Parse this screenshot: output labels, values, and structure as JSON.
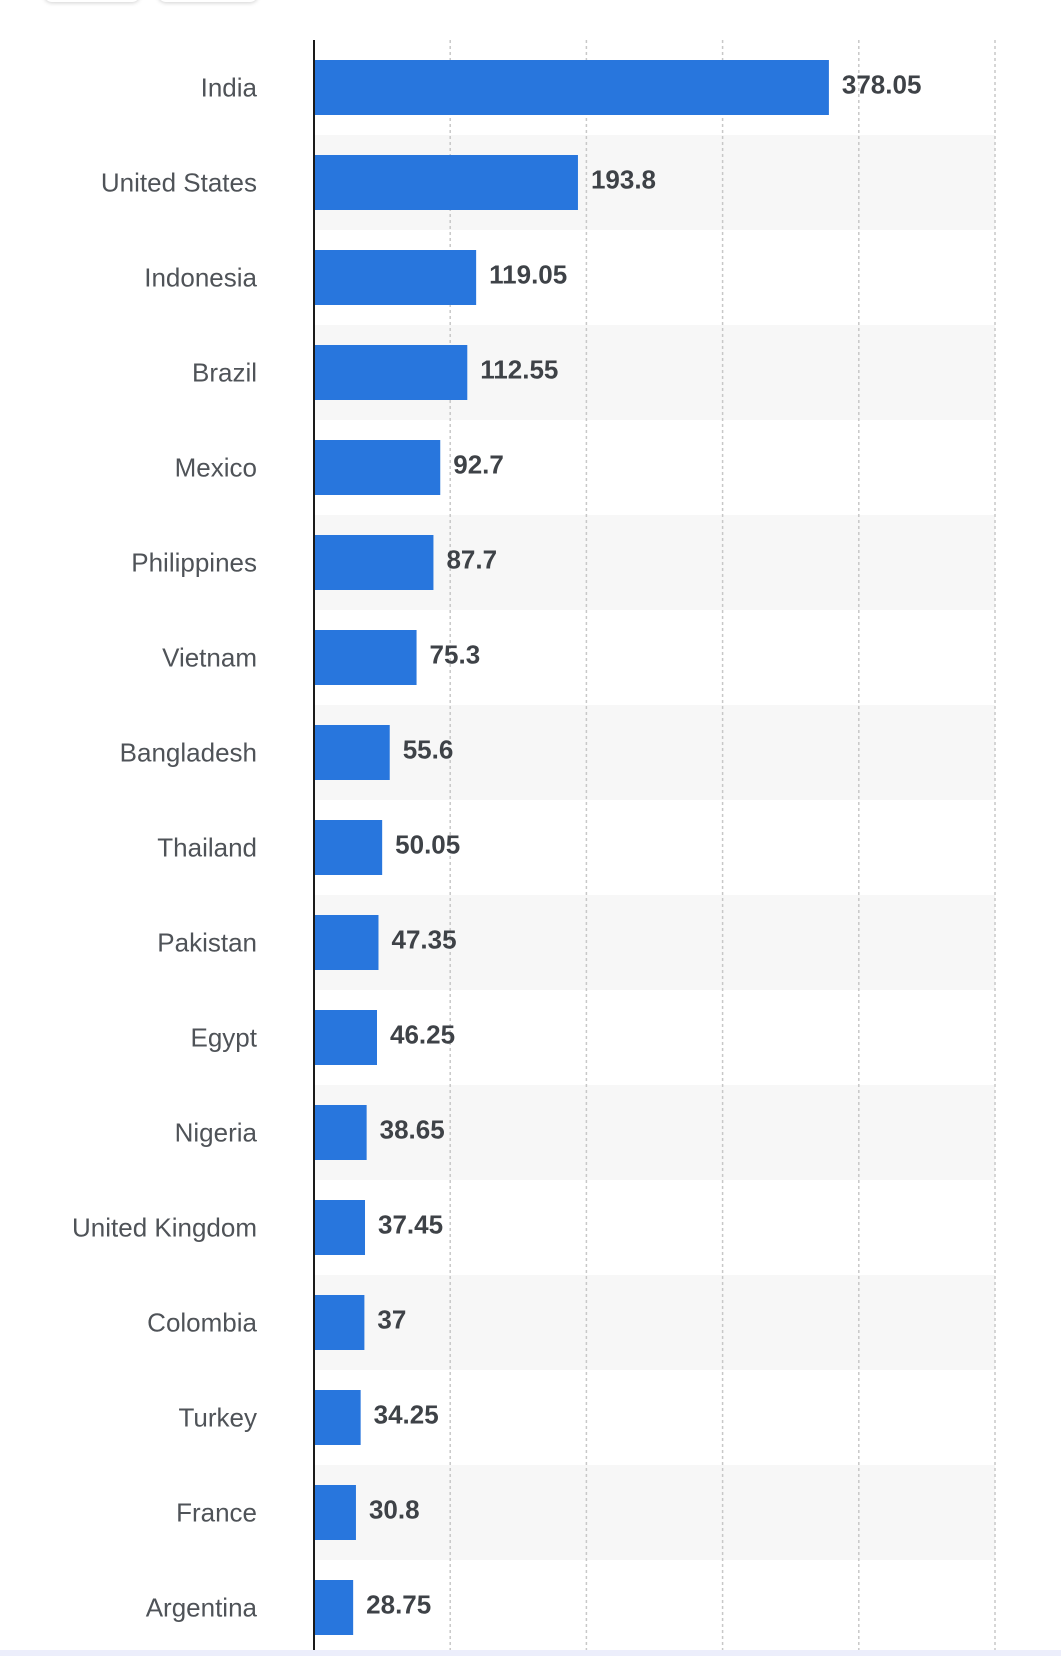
{
  "chart_data": {
    "type": "bar",
    "orientation": "horizontal",
    "categories": [
      "India",
      "United States",
      "Indonesia",
      "Brazil",
      "Mexico",
      "Philippines",
      "Vietnam",
      "Bangladesh",
      "Thailand",
      "Pakistan",
      "Egypt",
      "Nigeria",
      "United Kingdom",
      "Colombia",
      "Turkey",
      "France",
      "Argentina"
    ],
    "values": [
      378.05,
      193.8,
      119.05,
      112.55,
      92.7,
      87.7,
      75.3,
      55.6,
      50.05,
      47.35,
      46.25,
      38.65,
      37.45,
      37,
      34.25,
      30.8,
      28.75
    ],
    "value_labels": [
      "378.05",
      "193.8",
      "119.05",
      "112.55",
      "92.7",
      "87.7",
      "75.3",
      "55.6",
      "50.05",
      "47.35",
      "46.25",
      "38.65",
      "37.45",
      "37",
      "34.25",
      "30.8",
      "28.75"
    ],
    "xlim": [
      0,
      500
    ],
    "grid": true,
    "legend": "none",
    "colors": {
      "bar": "#2876dd",
      "axis": "#1a1a1a",
      "grid": "#c8c8c8",
      "band": "#f7f7f7",
      "category_text": "#4f5358",
      "value_text": "#3e4247"
    }
  }
}
